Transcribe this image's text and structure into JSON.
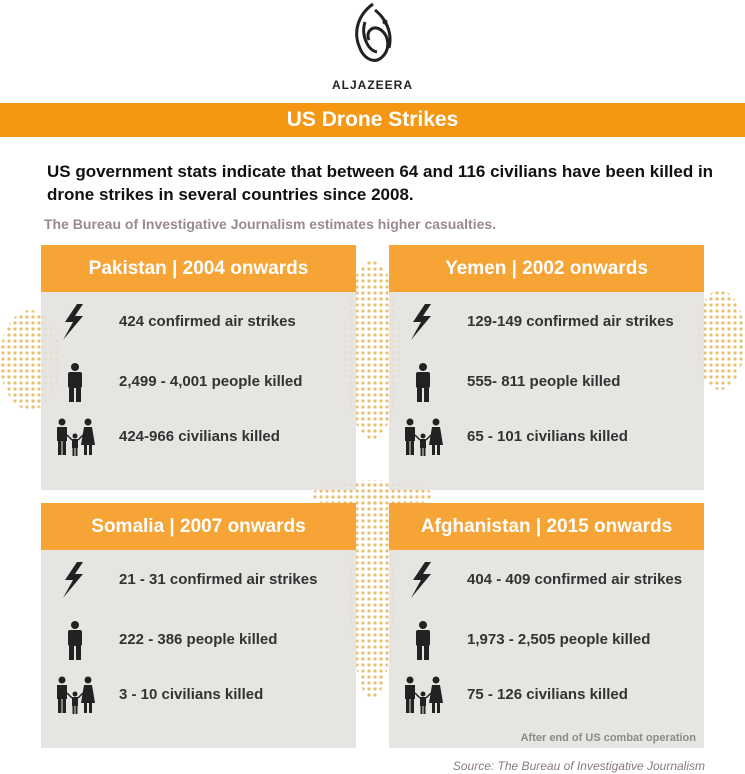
{
  "header": {
    "logo_text": "ALJAZEERA",
    "title": "US Drone Strikes"
  },
  "intro": {
    "lead": "US government stats indicate that between 64 and 116 civilians have been killed in drone strikes in several countries since 2008.",
    "note": "The Bureau of Investigative Journalism estimates higher casualties."
  },
  "panels": [
    {
      "title": "Pakistan | 2004 onwards",
      "rows": [
        "424 confirmed air strikes",
        "2,499 - 4,001 people killed",
        "424-966 civilians killed"
      ]
    },
    {
      "title": "Yemen | 2002 onwards",
      "rows": [
        "129-149 confirmed air strikes",
        "555- 811 people killed",
        "65 - 101 civilians killed"
      ]
    },
    {
      "title": "Somalia | 2007 onwards",
      "rows": [
        "21 - 31 confirmed air strikes",
        "222 - 386 people killed",
        "3 - 10 civilians killed"
      ]
    },
    {
      "title": "Afghanistan | 2015 onwards",
      "rows": [
        "404 - 409 confirmed air strikes",
        "1,973 - 2,505 people killed",
        "75 - 126 civilians killed"
      ],
      "note": "After end of US combat operation"
    }
  ],
  "source": "Source: The Bureau of Investigative Journalism"
}
